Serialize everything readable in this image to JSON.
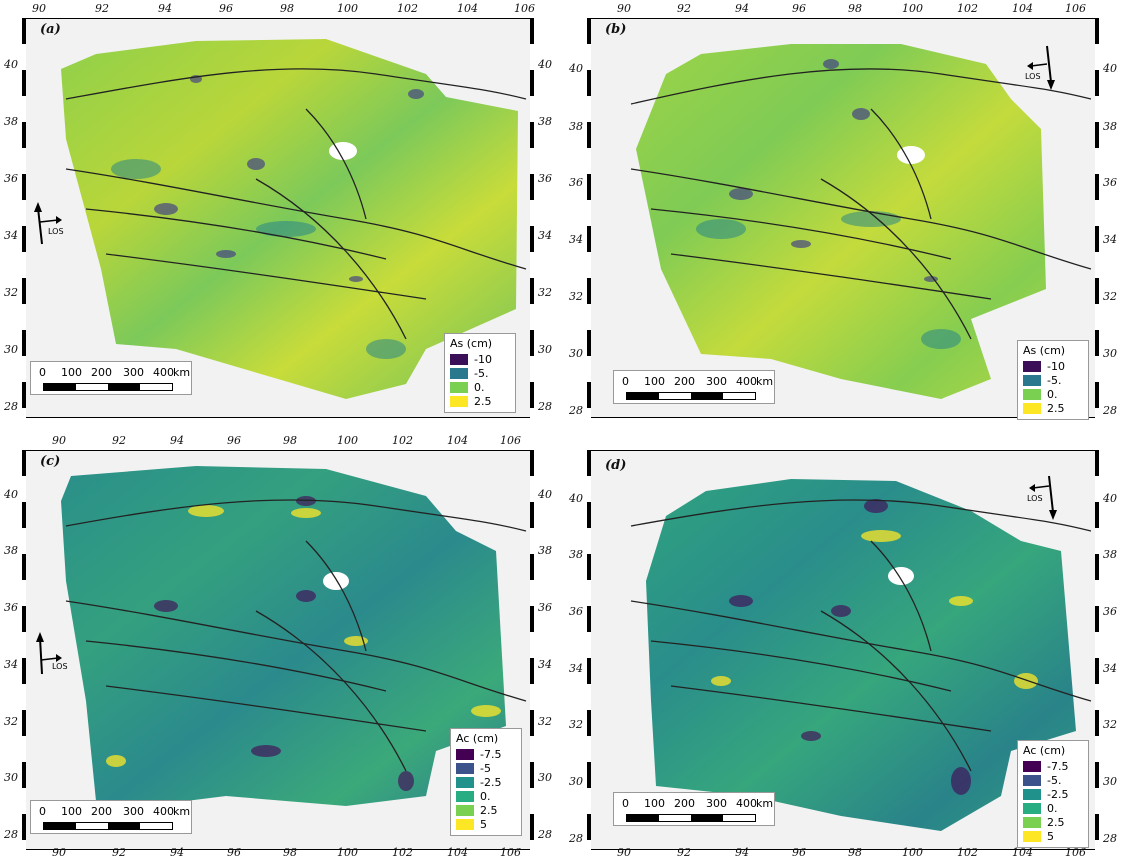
{
  "x_ticks": [
    "90",
    "92",
    "94",
    "96",
    "98",
    "100",
    "102",
    "104",
    "106"
  ],
  "y_ticks": [
    "40",
    "38",
    "36",
    "34",
    "32",
    "30",
    "28"
  ],
  "panels": [
    {
      "label": "(a)",
      "legend_title": "As (cm)",
      "legend_items": [
        "-10",
        "-5.",
        "0.",
        "2.5"
      ],
      "legend_colors": [
        "#3b0f57",
        "#2a788e",
        "#7ad151",
        "#fde725"
      ],
      "los": "LOS"
    },
    {
      "label": "(b)",
      "legend_title": "As (cm)",
      "legend_items": [
        "-10",
        "-5.",
        "0.",
        "2.5"
      ],
      "legend_colors": [
        "#3b0f57",
        "#2a788e",
        "#7ad151",
        "#fde725"
      ],
      "los": "LOS"
    },
    {
      "label": "(c)",
      "legend_title": "Ac (cm)",
      "legend_items": [
        "-7.5",
        "-5",
        "-2.5",
        "0.",
        "2.5",
        "5"
      ],
      "legend_colors": [
        "#440154",
        "#3b528b",
        "#21918c",
        "#27ad81",
        "#7ad151",
        "#fde725"
      ],
      "los": "LOS"
    },
    {
      "label": "(d)",
      "legend_title": "Ac (cm)",
      "legend_items": [
        "-7.5",
        "-5.",
        "-2.5",
        "0.",
        "2.5",
        "5"
      ],
      "legend_colors": [
        "#440154",
        "#3b528b",
        "#21918c",
        "#27ad81",
        "#7ad151",
        "#fde725"
      ],
      "los": "LOS"
    }
  ],
  "scalebar_labels": [
    "0",
    "100",
    "200",
    "300",
    "400",
    "km"
  ]
}
